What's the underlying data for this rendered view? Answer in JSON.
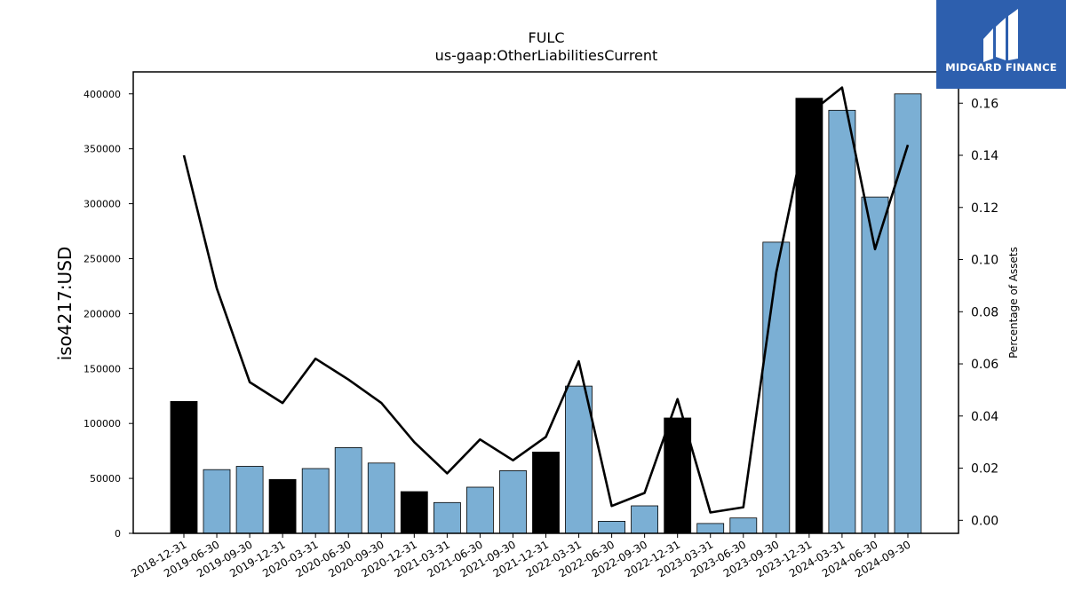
{
  "brand": {
    "name": "MIDGARD FINANCE",
    "logo_icon": "midgard-logo-icon",
    "bg_color": "#2d5fae"
  },
  "chart_data": {
    "type": "bar",
    "title": "FULC",
    "subtitle": "us-gaap:OtherLiabilitiesCurrent",
    "ylabel": "iso4217:USD",
    "y2label": "Percentage of Assets",
    "ylim": [
      0,
      420000
    ],
    "y2lim": [
      -0.005,
      0.172
    ],
    "yticks": [
      0,
      50000,
      100000,
      150000,
      200000,
      250000,
      300000,
      350000,
      400000
    ],
    "y2ticks": [
      "0.00",
      "0.02",
      "0.04",
      "0.06",
      "0.08",
      "0.10",
      "0.12",
      "0.14",
      "0.16"
    ],
    "categories": [
      "2018-12-31",
      "2019-06-30",
      "2019-09-30",
      "2019-12-31",
      "2020-03-31",
      "2020-06-30",
      "2020-09-30",
      "2020-12-31",
      "2021-03-31",
      "2021-06-30",
      "2021-09-30",
      "2021-12-31",
      "2022-03-31",
      "2022-06-30",
      "2022-09-30",
      "2022-12-31",
      "2023-03-31",
      "2023-06-30",
      "2023-09-30",
      "2023-12-31",
      "2024-03-31",
      "2024-06-30",
      "2024-09-30"
    ],
    "values": [
      120000,
      58000,
      61000,
      49000,
      59000,
      78000,
      64000,
      38000,
      28000,
      42000,
      57000,
      74000,
      134000,
      11000,
      25000,
      105000,
      9000,
      14000,
      265000,
      396000,
      385000,
      306000,
      400000
    ],
    "annual": [
      true,
      false,
      false,
      true,
      false,
      false,
      false,
      true,
      false,
      false,
      false,
      true,
      false,
      false,
      false,
      true,
      false,
      false,
      false,
      true,
      false,
      false,
      false
    ],
    "pct_assets": [
      0.14,
      0.089,
      0.053,
      0.045,
      0.062,
      0.054,
      0.045,
      0.03,
      0.018,
      0.031,
      0.023,
      0.032,
      0.061,
      0.0055,
      0.0105,
      0.0465,
      0.003,
      0.005,
      0.095,
      0.156,
      0.166,
      0.104,
      0.144
    ],
    "colors": {
      "annual_bar": "#000000",
      "quarter_bar": "#7bafd4",
      "line": "#000000"
    },
    "grid": false
  }
}
